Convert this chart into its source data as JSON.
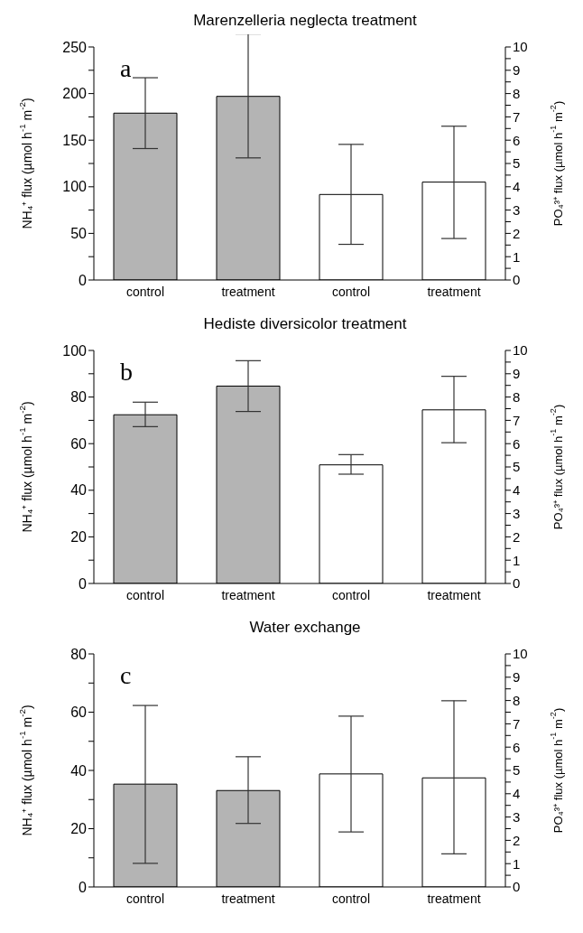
{
  "chart_data": [
    {
      "type": "bar",
      "title": "Marenzelleria neglecta treatment",
      "annotations": [
        "a"
      ],
      "categories": [
        "control",
        "treatment",
        "control",
        "treatment"
      ],
      "ylabel": "NH₄⁺ flux (µmol h$^{-1}$ m$^{-2}$)",
      "y2label": "PO₄³⁺ flux (µmol h$^{-1}$ m$^{-2}$)",
      "ylim": [
        0,
        250
      ],
      "yticks": [
        0,
        {
          "value": 25,
          "label": null
        },
        50,
        {
          "value": 75,
          "label": null
        },
        100,
        {
          "value": 125,
          "label": null
        },
        150,
        {
          "value": 175,
          "label": null
        },
        200,
        {
          "value": 225,
          "label": null
        },
        250
      ],
      "y2lim": [
        0,
        10
      ],
      "y2ticks": [
        0,
        {
          "value": 0.5,
          "label": null
        },
        1,
        {
          "value": 1.5,
          "label": null
        },
        2,
        {
          "value": 2.5,
          "label": null
        },
        3,
        {
          "value": 3.5,
          "label": null
        },
        4,
        {
          "value": 4.5,
          "label": null
        },
        5,
        {
          "value": 5.5,
          "label": null
        },
        6,
        {
          "value": 6.5,
          "label": null
        },
        7,
        {
          "value": 7.5,
          "label": null
        },
        8,
        {
          "value": 8.5,
          "label": null
        },
        9,
        {
          "value": 9.5,
          "label": null
        },
        10
      ],
      "series": [
        {
          "color": "#b4b4b4",
          "values": [
            179,
            197,
            null,
            null
          ],
          "errors": [
            [
              141,
              217
            ],
            [
              131,
              264
            ],
            null,
            null
          ]
        },
        {
          "color": "#ffffff",
          "axis": "y2",
          "values": [
            null,
            null,
            3.67,
            4.2
          ],
          "errors": [
            null,
            null,
            [
              1.53,
              5.82
            ],
            [
              1.78,
              6.6
            ]
          ]
        }
      ]
    },
    {
      "type": "bar",
      "title": "Hediste diversicolor treatment",
      "annotations": [
        "b"
      ],
      "categories": [
        "control",
        "treatment",
        "control",
        "treatment"
      ],
      "ylabel": "NH₄⁺ flux (µmol h$^{-1}$ m$^{-2}$)",
      "y2label": "PO₄³⁺ flux (µmol h$^{-1}$ m$^{-2}$)",
      "ylim": [
        0,
        100
      ],
      "yticks": [
        0,
        {
          "value": 10,
          "label": null
        },
        20,
        {
          "value": 30,
          "label": null
        },
        40,
        {
          "value": 50,
          "label": null
        },
        60,
        {
          "value": 70,
          "label": null
        },
        80,
        {
          "value": 90,
          "label": null
        },
        100
      ],
      "y2lim": [
        0,
        10
      ],
      "y2ticks": [
        0,
        {
          "value": 0.5,
          "label": null
        },
        1,
        {
          "value": 1.5,
          "label": null
        },
        2,
        {
          "value": 2.5,
          "label": null
        },
        3,
        {
          "value": 3.5,
          "label": null
        },
        4,
        {
          "value": 4.5,
          "label": null
        },
        5,
        {
          "value": 5.5,
          "label": null
        },
        6,
        {
          "value": 6.5,
          "label": null
        },
        7,
        {
          "value": 7.5,
          "label": null
        },
        8,
        {
          "value": 8.5,
          "label": null
        },
        9,
        {
          "value": 9.5,
          "label": null
        },
        10
      ],
      "series": [
        {
          "color": "#b4b4b4",
          "values": [
            72.4,
            84.7,
            null,
            null
          ],
          "errors": [
            [
              67.3,
              77.8
            ],
            [
              73.8,
              95.6
            ],
            null,
            null
          ]
        },
        {
          "color": "#ffffff",
          "axis": "y2",
          "values": [
            null,
            null,
            5.09,
            7.45
          ],
          "errors": [
            null,
            null,
            [
              4.69,
              5.53
            ],
            [
              6.04,
              8.89
            ]
          ]
        }
      ]
    },
    {
      "type": "bar",
      "title": "Water exchange",
      "annotations": [
        "c"
      ],
      "categories": [
        "control",
        "treatment",
        "control",
        "treatment"
      ],
      "ylabel": "NH₄⁺ flux (µmol h$^{-1}$ m$^{-2}$)",
      "y2label": "PO₄³⁺ flux (µmol h$^{-1}$ m$^{-2}$)",
      "ylim": [
        0,
        80
      ],
      "yticks": [
        0,
        {
          "value": 10,
          "label": null
        },
        20,
        {
          "value": 30,
          "label": null
        },
        40,
        {
          "value": 50,
          "label": null
        },
        60,
        {
          "value": 70,
          "label": null
        },
        80
      ],
      "y2lim": [
        0,
        10
      ],
      "y2ticks": [
        0,
        {
          "value": 0.5,
          "label": null
        },
        1,
        {
          "value": 1.5,
          "label": null
        },
        2,
        {
          "value": 2.5,
          "label": null
        },
        3,
        {
          "value": 3.5,
          "label": null
        },
        4,
        {
          "value": 4.5,
          "label": null
        },
        5,
        {
          "value": 5.5,
          "label": null
        },
        6,
        {
          "value": 6.5,
          "label": null
        },
        7,
        {
          "value": 7.5,
          "label": null
        },
        8,
        {
          "value": 8.5,
          "label": null
        },
        9,
        {
          "value": 9.5,
          "label": null
        },
        10
      ],
      "series": [
        {
          "color": "#b4b4b4",
          "values": [
            35.3,
            33.1,
            null,
            null
          ],
          "errors": [
            [
              8.1,
              62.3
            ],
            [
              21.8,
              44.7
            ],
            null,
            null
          ]
        },
        {
          "color": "#ffffff",
          "axis": "y2",
          "values": [
            null,
            null,
            4.85,
            4.68
          ],
          "errors": [
            null,
            null,
            [
              2.36,
              7.33
            ],
            [
              1.42,
              7.99
            ]
          ]
        }
      ]
    }
  ]
}
